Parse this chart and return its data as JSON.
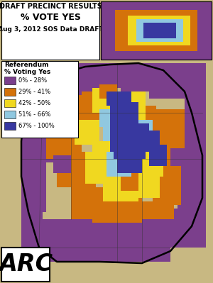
{
  "title_lines": [
    "DRAFT PRECINCT RESULTS",
    "% VOTE YES",
    "Aug 3, 2012 SOS Data DRAFT"
  ],
  "legend_title_lines": [
    "Referendum",
    "% Voting Yes"
  ],
  "legend_items": [
    {
      "label": "0% - 28%",
      "color": "#7B3F8C"
    },
    {
      "label": "29% - 41%",
      "color": "#D4720A"
    },
    {
      "label": "42% - 50%",
      "color": "#F0D820"
    },
    {
      "label": "51% - 66%",
      "color": "#90C8E0"
    },
    {
      "label": "67% - 100%",
      "color": "#3838A0"
    }
  ],
  "bg_color": "#C8B882",
  "title_bg": "#FFFFFF",
  "legend_bg": "#FFFFFF",
  "border_color": "#000000",
  "fig_width": 3.0,
  "fig_height": 3.99,
  "dpi": 100
}
